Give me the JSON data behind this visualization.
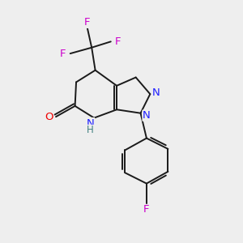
{
  "background_color": "#eeeeee",
  "bond_color": "#1a1a1a",
  "atom_colors": {
    "N": "#2020ff",
    "O": "#ee0000",
    "F": "#cc00cc",
    "H": "#408080",
    "C": "#1a1a1a"
  },
  "figsize": [
    3.0,
    3.0
  ],
  "dpi": 100
}
